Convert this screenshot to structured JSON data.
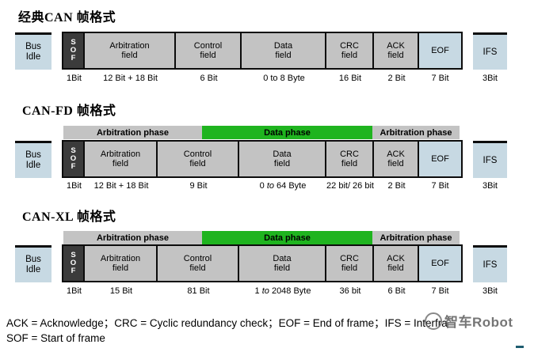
{
  "colors": {
    "field_gray": "#c3c3c3",
    "sof_dark": "#3b3b3b",
    "light_blue": "#c7d9e3",
    "phase_green": "#1fb41f",
    "border_black": "#0c0c0c",
    "watermark_gray": "#575757",
    "dash_teal": "#1e5d70"
  },
  "rows": [
    {
      "id": "classic-can",
      "variant": "r1",
      "title": "经典CAN 帧格式",
      "phase_bar": null,
      "bus_idle": {
        "lines": [
          "Bus",
          "Idle"
        ]
      },
      "fields": [
        {
          "key": "sof",
          "lines": [
            "S",
            "O",
            "F"
          ],
          "bits": "1Bit"
        },
        {
          "key": "arbitration",
          "lines": [
            "Arbitration",
            "field"
          ],
          "bits": "12 Bit + 18 Bit"
        },
        {
          "key": "control",
          "lines": [
            "Control",
            "field"
          ],
          "bits": "6 Bit"
        },
        {
          "key": "data",
          "lines": [
            "Data",
            "field"
          ],
          "bits": "0 to 8 Byte"
        },
        {
          "key": "crc",
          "lines": [
            "CRC",
            "field"
          ],
          "bits": "16 Bit"
        },
        {
          "key": "ack",
          "lines": [
            "ACK",
            "field"
          ],
          "bits": "2 Bit"
        },
        {
          "key": "eof",
          "lines": [
            "EOF"
          ],
          "bits": "7 Bit"
        }
      ],
      "ifs": {
        "label": "IFS",
        "bits": "3Bit"
      }
    },
    {
      "id": "can-fd",
      "variant": "r23",
      "title": "CAN-FD 帧格式",
      "phase_bar": [
        {
          "label": "Arbitration phase",
          "type": "gray"
        },
        {
          "label": "Data phase",
          "type": "green"
        },
        {
          "label": "Arbitration phase",
          "type": "gray"
        }
      ],
      "bus_idle": {
        "lines": [
          "Bus",
          "Idle"
        ]
      },
      "fields": [
        {
          "key": "sof",
          "lines": [
            "S",
            "O",
            "F"
          ],
          "bits": "1Bit"
        },
        {
          "key": "arbitration",
          "lines": [
            "Arbitration",
            "field"
          ],
          "bits": "12 Bit + 18 Bit"
        },
        {
          "key": "control",
          "lines": [
            "Control",
            "field"
          ],
          "bits": "9 Bit"
        },
        {
          "key": "data",
          "lines": [
            "Data",
            "field"
          ],
          "bits": "0 to 64 Byte"
        },
        {
          "key": "crc",
          "lines": [
            "CRC",
            "field"
          ],
          "bits": "22 bit/ 26 bit"
        },
        {
          "key": "ack",
          "lines": [
            "ACK",
            "field"
          ],
          "bits": "2 Bit"
        },
        {
          "key": "eof",
          "lines": [
            "EOF"
          ],
          "bits": "7 Bit"
        }
      ],
      "ifs": {
        "label": "IFS",
        "bits": "3Bit"
      }
    },
    {
      "id": "can-xl",
      "variant": "r23",
      "title": "CAN-XL 帧格式",
      "phase_bar": [
        {
          "label": "Arbitration phase",
          "type": "gray"
        },
        {
          "label": "Data phase",
          "type": "green"
        },
        {
          "label": "Arbitration phase",
          "type": "gray"
        }
      ],
      "bus_idle": {
        "lines": [
          "Bus",
          "Idle"
        ]
      },
      "fields": [
        {
          "key": "sof",
          "lines": [
            "S",
            "O",
            "F"
          ],
          "bits": "1Bit"
        },
        {
          "key": "arbitration",
          "lines": [
            "Arbitration",
            "field"
          ],
          "bits": "15 Bit"
        },
        {
          "key": "control",
          "lines": [
            "Control",
            "field"
          ],
          "bits": "81 Bit"
        },
        {
          "key": "data",
          "lines": [
            "Data",
            "field"
          ],
          "bits": "1 to 2048 Byte"
        },
        {
          "key": "crc",
          "lines": [
            "CRC",
            "field"
          ],
          "bits": "36 bit"
        },
        {
          "key": "ack",
          "lines": [
            "ACK",
            "field"
          ],
          "bits": "6 Bit"
        },
        {
          "key": "eof",
          "lines": [
            "EOF"
          ],
          "bits": "7 Bit"
        }
      ],
      "ifs": {
        "label": "IFS",
        "bits": "3Bit"
      }
    }
  ],
  "footer": {
    "line1": "ACK = Acknowledge；CRC = Cyclic redundancy check；EOF = End of frame；IFS = Interfra",
    "line2": "SOF = Start of frame"
  },
  "watermark": {
    "text": "智车Robot"
  }
}
